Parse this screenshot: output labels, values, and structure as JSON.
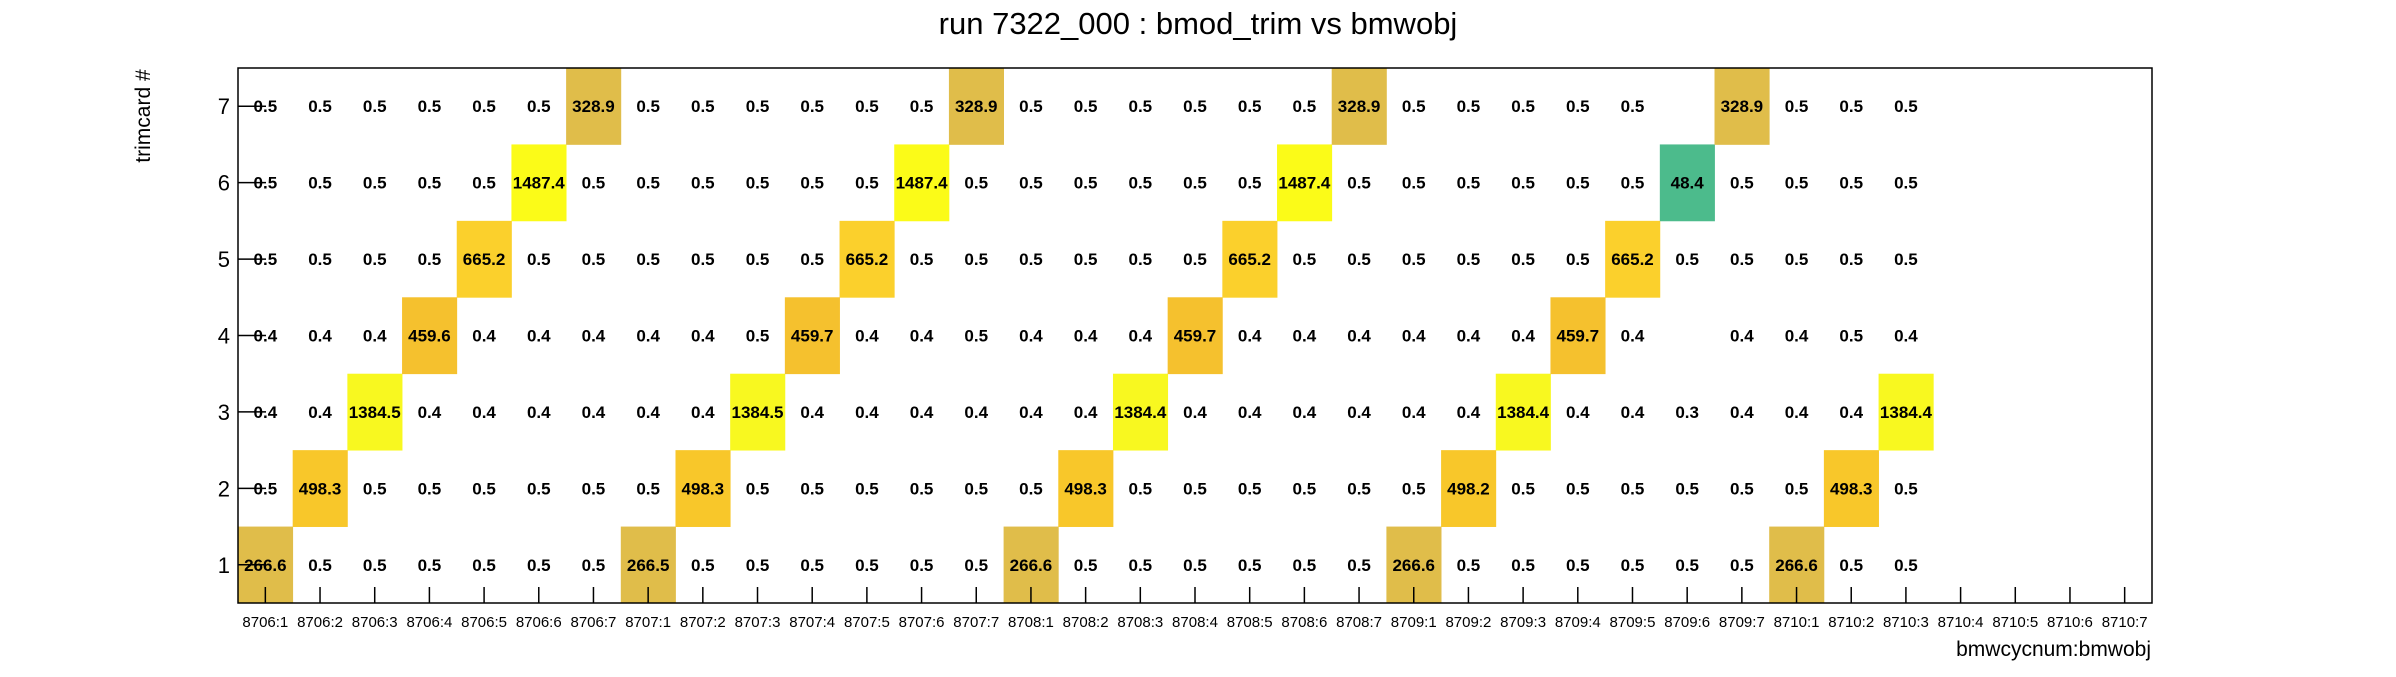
{
  "chart_data": {
    "type": "heatmap",
    "title": "run 7322_000 : bmod_trim vs bmwobj",
    "xlabel": "bmwcycnum:bmwobj",
    "ylabel": "trimcard #",
    "x_categories": [
      "8706:1",
      "8706:2",
      "8706:3",
      "8706:4",
      "8706:5",
      "8706:6",
      "8706:7",
      "8707:1",
      "8707:2",
      "8707:3",
      "8707:4",
      "8707:5",
      "8707:6",
      "8707:7",
      "8708:1",
      "8708:2",
      "8708:3",
      "8708:4",
      "8708:5",
      "8708:6",
      "8708:7",
      "8709:1",
      "8709:2",
      "8709:3",
      "8709:4",
      "8709:5",
      "8709:6",
      "8709:7",
      "8710:1",
      "8710:2",
      "8710:3",
      "8710:4",
      "8710:5",
      "8710:6",
      "8710:7"
    ],
    "y_categories": [
      "1",
      "2",
      "3",
      "4",
      "5",
      "6",
      "7"
    ],
    "values": [
      [
        "266.6",
        "0.5",
        "0.5",
        "0.5",
        "0.5",
        "0.5",
        "0.5",
        "266.5",
        "0.5",
        "0.5",
        "0.5",
        "0.5",
        "0.5",
        "0.5",
        "266.6",
        "0.5",
        "0.5",
        "0.5",
        "0.5",
        "0.5",
        "0.5",
        "266.6",
        "0.5",
        "0.5",
        "0.5",
        "0.5",
        "0.5",
        "0.5",
        "266.6",
        "0.5",
        "0.5",
        null,
        null,
        null,
        null
      ],
      [
        "0.5",
        "498.3",
        "0.5",
        "0.5",
        "0.5",
        "0.5",
        "0.5",
        "0.5",
        "498.3",
        "0.5",
        "0.5",
        "0.5",
        "0.5",
        "0.5",
        "0.5",
        "498.3",
        "0.5",
        "0.5",
        "0.5",
        "0.5",
        "0.5",
        "0.5",
        "498.2",
        "0.5",
        "0.5",
        "0.5",
        "0.5",
        "0.5",
        "0.5",
        "498.3",
        "0.5",
        null,
        null,
        null,
        null
      ],
      [
        "0.4",
        "0.4",
        "1384.5",
        "0.4",
        "0.4",
        "0.4",
        "0.4",
        "0.4",
        "0.4",
        "1384.5",
        "0.4",
        "0.4",
        "0.4",
        "0.4",
        "0.4",
        "0.4",
        "1384.4",
        "0.4",
        "0.4",
        "0.4",
        "0.4",
        "0.4",
        "0.4",
        "1384.4",
        "0.4",
        "0.4",
        "0.3",
        "0.4",
        "0.4",
        "0.4",
        "1384.4",
        null,
        null,
        null,
        null
      ],
      [
        "0.4",
        "0.4",
        "0.4",
        "459.6",
        "0.4",
        "0.4",
        "0.4",
        "0.4",
        "0.4",
        "0.5",
        "459.7",
        "0.4",
        "0.4",
        "0.5",
        "0.4",
        "0.4",
        "0.4",
        "459.7",
        "0.4",
        "0.4",
        "0.4",
        "0.4",
        "0.4",
        "0.4",
        "459.7",
        "0.4",
        null,
        "0.4",
        "0.4",
        "0.5",
        "0.4",
        null,
        null,
        null,
        null
      ],
      [
        "0.5",
        "0.5",
        "0.5",
        "0.5",
        "665.2",
        "0.5",
        "0.5",
        "0.5",
        "0.5",
        "0.5",
        "0.5",
        "665.2",
        "0.5",
        "0.5",
        "0.5",
        "0.5",
        "0.5",
        "0.5",
        "665.2",
        "0.5",
        "0.5",
        "0.5",
        "0.5",
        "0.5",
        "0.5",
        "665.2",
        "0.5",
        "0.5",
        "0.5",
        "0.5",
        "0.5",
        null,
        null,
        null,
        null
      ],
      [
        "0.5",
        "0.5",
        "0.5",
        "0.5",
        "0.5",
        "1487.4",
        "0.5",
        "0.5",
        "0.5",
        "0.5",
        "0.5",
        "0.5",
        "1487.4",
        "0.5",
        "0.5",
        "0.5",
        "0.5",
        "0.5",
        "0.5",
        "1487.4",
        "0.5",
        "0.5",
        "0.5",
        "0.5",
        "0.5",
        "0.5",
        "48.4",
        "0.5",
        "0.5",
        "0.5",
        "0.5",
        null,
        null,
        null,
        null
      ],
      [
        "0.5",
        "0.5",
        "0.5",
        "0.5",
        "0.5",
        "0.5",
        "328.9",
        "0.5",
        "0.5",
        "0.5",
        "0.5",
        "0.5",
        "0.5",
        "328.9",
        "0.5",
        "0.5",
        "0.5",
        "0.5",
        "0.5",
        "0.5",
        "328.9",
        "0.5",
        "0.5",
        "0.5",
        "0.5",
        "0.5",
        null,
        "328.9",
        "0.5",
        "0.5",
        "0.5",
        null,
        null,
        null,
        null
      ]
    ],
    "colors": {
      "low": "#ffffff",
      "c_48": "#4cbb8c",
      "c_266": "#e0bd4a",
      "c_329": "#e0bd4a",
      "c_460": "#f5c12e",
      "c_498": "#f8c72a",
      "c_665": "#fbd02c",
      "c_1384": "#f8f820",
      "c_1487": "#fbfb18"
    },
    "grid": false,
    "legend": "none"
  }
}
